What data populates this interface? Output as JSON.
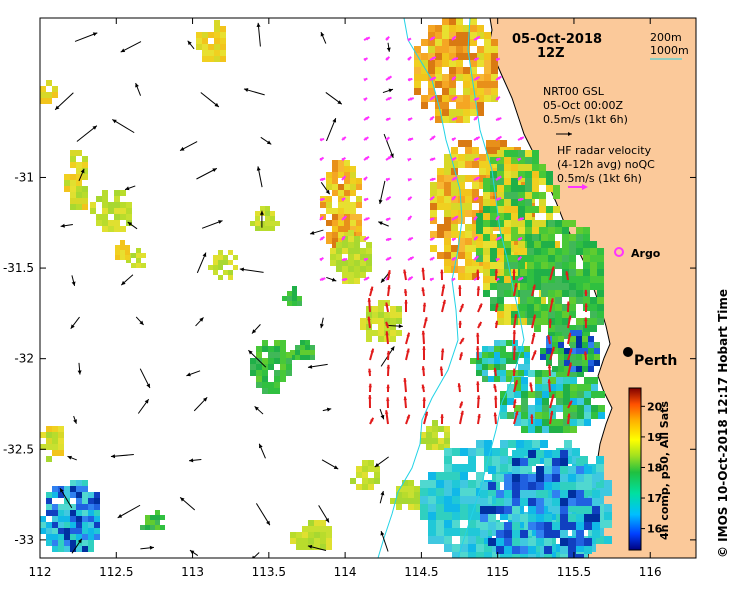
{
  "map": {
    "date": "05-Oct-2018",
    "time": "12Z",
    "contours": {
      "shallow": "200m",
      "deep": "1000m"
    },
    "model_legend": {
      "lines": [
        "NRT00 GSL",
        "05-Oct 00:00Z",
        "0.5m/s (1kt 6h)"
      ]
    },
    "radar_legend": {
      "lines": [
        "HF radar velocity",
        "(4-12h avg) noQC",
        "0.5m/s (1kt 6h)"
      ]
    },
    "argo_label": "Argo",
    "city_label": "Perth",
    "colorbar": {
      "label": "4h comp, p50, All Sats",
      "ticks": [
        "16",
        "17",
        "18",
        "19",
        "20"
      ],
      "range": [
        15.3,
        20.6
      ]
    },
    "credit": "© IMOS 10-Oct-2018 12:17 Hobart Time",
    "x_ticks": [
      "112",
      "112.5",
      "113",
      "113.5",
      "114",
      "114.5",
      "115",
      "115.5",
      "116"
    ],
    "y_ticks": [
      "-31",
      "-31.5",
      "-32",
      "-32.5",
      "-33"
    ],
    "colors": {
      "land": "#fbc99a",
      "contour": "#22d3e6",
      "radar_arrow": "#ff33ff",
      "offshore_arrow": "#e11b1b",
      "model_arrow": "#000000"
    }
  }
}
